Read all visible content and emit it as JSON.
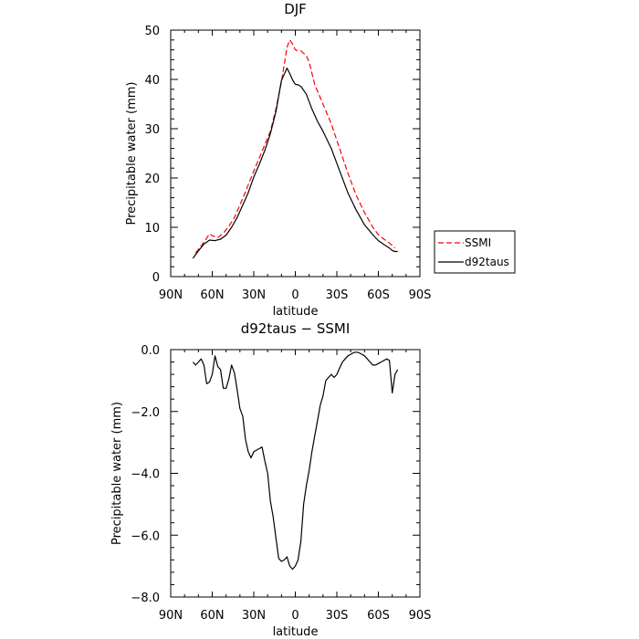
{
  "chart_data": [
    {
      "type": "line",
      "title": "DJF",
      "xlabel": "latitude",
      "ylabel": "Precipitable water (mm)",
      "xlim": [
        90,
        -90
      ],
      "ylim": [
        0,
        50
      ],
      "xticks": [
        90,
        60,
        30,
        0,
        -30,
        -60,
        -90
      ],
      "xtick_labels": [
        "90N",
        "60N",
        "30N",
        "0",
        "30S",
        "60S",
        "90S"
      ],
      "yticks": [
        0,
        10,
        20,
        30,
        40,
        50
      ],
      "ytick_labels": [
        "0",
        "10",
        "20",
        "30",
        "40",
        "50"
      ],
      "legend_position": "right-bottom-outside",
      "series": [
        {
          "name": "SSMI",
          "color": "#ff0000",
          "dash": "dashed",
          "x": [
            72,
            68,
            64,
            62,
            60,
            56,
            52,
            48,
            44,
            40,
            36,
            30,
            24,
            18,
            14,
            10,
            6,
            4,
            2,
            0,
            -2,
            -4,
            -6,
            -8,
            -10,
            -14,
            -20,
            -26,
            -32,
            -38,
            -44,
            -50,
            -56,
            -60,
            -64,
            -68,
            -70,
            -72
          ],
          "y": [
            4.8,
            6.2,
            7.8,
            8.7,
            8.3,
            7.9,
            8.8,
            10.2,
            12.0,
            14.5,
            17.2,
            21.4,
            25.4,
            29.5,
            34.0,
            39.5,
            46.5,
            48.0,
            47.2,
            46.0,
            45.8,
            45.8,
            45.3,
            44.8,
            43.5,
            39.0,
            35.0,
            31.0,
            26.0,
            21.0,
            16.5,
            13.0,
            10.0,
            8.5,
            7.6,
            6.8,
            6.3,
            5.8
          ]
        },
        {
          "name": "d92taus",
          "color": "#000000",
          "dash": "solid",
          "x": [
            74,
            70,
            66,
            62,
            58,
            54,
            50,
            46,
            42,
            38,
            34,
            30,
            26,
            22,
            18,
            14,
            10,
            6,
            4,
            2,
            0,
            -2,
            -4,
            -8,
            -12,
            -16,
            -20,
            -26,
            -32,
            -38,
            -44,
            -50,
            -56,
            -60,
            -64,
            -68,
            -70,
            -72,
            -74
          ],
          "y": [
            3.7,
            5.2,
            6.6,
            7.4,
            7.3,
            7.6,
            8.4,
            10.0,
            12.0,
            14.5,
            17.0,
            20.2,
            22.8,
            25.6,
            29.0,
            33.5,
            39.8,
            42.3,
            41.2,
            39.9,
            39.0,
            38.9,
            38.6,
            37.0,
            34.0,
            31.5,
            29.5,
            26.0,
            21.5,
            17.0,
            13.5,
            10.5,
            8.5,
            7.3,
            6.5,
            5.8,
            5.3,
            5.1,
            5.1
          ]
        }
      ]
    },
    {
      "type": "line",
      "title": "d92taus − SSMI",
      "xlabel": "latitude",
      "ylabel": "Precipitable water (mm)",
      "xlim": [
        90,
        -90
      ],
      "ylim": [
        -8,
        0
      ],
      "xticks": [
        90,
        60,
        30,
        0,
        -30,
        -60,
        -90
      ],
      "xtick_labels": [
        "90N",
        "60N",
        "30N",
        "0",
        "30S",
        "60S",
        "90S"
      ],
      "yticks": [
        0,
        -2,
        -4,
        -6,
        -8
      ],
      "ytick_labels": [
        "0.0",
        "−2.0",
        "−4.0",
        "−6.0",
        "−8.0"
      ],
      "series": [
        {
          "color": "#000000",
          "dash": "solid",
          "x": [
            74,
            72,
            70,
            68,
            66,
            64,
            62,
            60,
            58,
            56,
            54,
            52,
            50,
            48,
            46,
            44,
            42,
            40,
            38,
            36,
            34,
            32,
            30,
            28,
            26,
            24,
            22,
            20,
            18,
            16,
            14,
            12,
            10,
            8,
            6,
            4,
            2,
            0,
            -2,
            -4,
            -6,
            -8,
            -10,
            -12,
            -14,
            -16,
            -18,
            -20,
            -22,
            -24,
            -26,
            -28,
            -30,
            -32,
            -34,
            -36,
            -38,
            -40,
            -42,
            -44,
            -46,
            -48,
            -50,
            -52,
            -54,
            -56,
            -58,
            -60,
            -62,
            -64,
            -66,
            -68,
            -70,
            -72,
            -74
          ],
          "y": [
            -0.4,
            -0.5,
            -0.4,
            -0.3,
            -0.5,
            -1.1,
            -1.05,
            -0.8,
            -0.2,
            -0.55,
            -0.65,
            -1.25,
            -1.25,
            -0.95,
            -0.5,
            -0.75,
            -1.3,
            -1.9,
            -2.15,
            -2.9,
            -3.3,
            -3.5,
            -3.3,
            -3.25,
            -3.2,
            -3.15,
            -3.6,
            -4.0,
            -4.9,
            -5.4,
            -6.1,
            -6.75,
            -6.85,
            -6.8,
            -6.7,
            -7.0,
            -7.1,
            -7.0,
            -6.8,
            -6.2,
            -5.0,
            -4.4,
            -3.9,
            -3.3,
            -2.8,
            -2.3,
            -1.8,
            -1.5,
            -1.0,
            -0.9,
            -0.8,
            -0.9,
            -0.8,
            -0.6,
            -0.4,
            -0.3,
            -0.2,
            -0.15,
            -0.1,
            -0.08,
            -0.1,
            -0.15,
            -0.2,
            -0.3,
            -0.4,
            -0.5,
            -0.5,
            -0.45,
            -0.4,
            -0.35,
            -0.3,
            -0.35,
            -1.4,
            -0.8,
            -0.65
          ]
        }
      ]
    }
  ]
}
